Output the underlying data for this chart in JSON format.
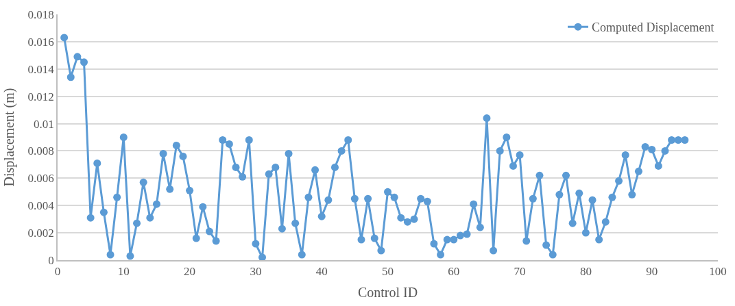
{
  "chart_data": {
    "type": "line",
    "xlabel": "Control ID",
    "ylabel": "Displacement (m)",
    "x": [
      1,
      2,
      3,
      4,
      5,
      6,
      7,
      8,
      9,
      10,
      11,
      12,
      13,
      14,
      15,
      16,
      17,
      18,
      19,
      20,
      21,
      22,
      23,
      24,
      25,
      26,
      27,
      28,
      29,
      30,
      31,
      32,
      33,
      34,
      35,
      36,
      37,
      38,
      39,
      40,
      41,
      42,
      43,
      44,
      45,
      46,
      47,
      48,
      49,
      50,
      51,
      52,
      53,
      54,
      55,
      56,
      57,
      58,
      59,
      60,
      61,
      62,
      63,
      64,
      65,
      66,
      67,
      68,
      69,
      70,
      71,
      72,
      73,
      74,
      75,
      76,
      77,
      78,
      79,
      80,
      81,
      82,
      83,
      84,
      85,
      86,
      87,
      88,
      89,
      90,
      91,
      92,
      93,
      94,
      95
    ],
    "series": [
      {
        "name": "Computed Displacement",
        "color": "#5b9bd5",
        "values": [
          0.0163,
          0.0134,
          0.0149,
          0.0145,
          0.0031,
          0.0071,
          0.0035,
          0.0004,
          0.0046,
          0.009,
          0.0003,
          0.0027,
          0.0057,
          0.0031,
          0.0041,
          0.0078,
          0.0052,
          0.0084,
          0.0076,
          0.0051,
          0.0016,
          0.0039,
          0.0021,
          0.0014,
          0.0088,
          0.0085,
          0.0068,
          0.0061,
          0.0088,
          0.0012,
          0.0002,
          0.0063,
          0.0068,
          0.0023,
          0.0078,
          0.0027,
          0.0004,
          0.0046,
          0.0066,
          0.0032,
          0.0044,
          0.0068,
          0.008,
          0.0088,
          0.0045,
          0.0015,
          0.0045,
          0.0016,
          0.0007,
          0.005,
          0.0046,
          0.0031,
          0.0028,
          0.003,
          0.0045,
          0.0043,
          0.0012,
          0.0004,
          0.0015,
          0.0015,
          0.0018,
          0.0019,
          0.0041,
          0.0024,
          0.0104,
          0.0007,
          0.008,
          0.009,
          0.0069,
          0.0077,
          0.0014,
          0.0045,
          0.0062,
          0.0011,
          0.0004,
          0.0048,
          0.0062,
          0.0027,
          0.0049,
          0.002,
          0.0044,
          0.0015,
          0.0028,
          0.0046,
          0.0058,
          0.0077,
          0.0048,
          0.0065,
          0.0083,
          0.0081,
          0.0069,
          0.008,
          0.0088,
          0.0088,
          0.0088
        ]
      }
    ],
    "xlim": [
      0,
      100
    ],
    "xticks": [
      0,
      10,
      20,
      30,
      40,
      50,
      60,
      70,
      80,
      90,
      100
    ],
    "ylim": [
      0,
      0.018
    ],
    "yticks": [
      0,
      0.002,
      0.004,
      0.006,
      0.008,
      0.01,
      0.012,
      0.014,
      0.016,
      0.018
    ],
    "grid": "y",
    "legend": "top right",
    "marker": "circle",
    "line_style": "solid"
  }
}
